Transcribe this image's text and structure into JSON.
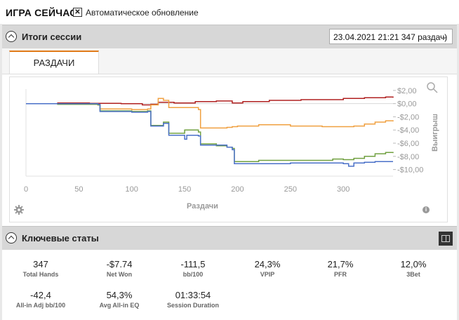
{
  "app": {
    "title": "ИГРА СЕЙЧАС",
    "auto_update_label": "Автоматическое обновление",
    "auto_update_checked": "✕"
  },
  "session": {
    "title": "Итоги сессии",
    "select_value": "23.04.2021 21:21 347 раздач)",
    "tab_label": "РАЗДАЧИ"
  },
  "chart_data": {
    "type": "line",
    "xlabel": "Раздачи",
    "ylabel": "Выигрыш",
    "xlim": [
      0,
      347
    ],
    "ylim": [
      -11,
      2.2
    ],
    "x_ticks": [
      0,
      50,
      100,
      150,
      200,
      250,
      300
    ],
    "y_ticks": [
      2,
      0,
      -2,
      -4,
      -6,
      -8,
      -10
    ],
    "y_tick_labels": [
      "$2,00",
      "$0,00",
      "-$2,00",
      "-$4,00",
      "-$6,00",
      "-$8,00",
      "-$10,00"
    ],
    "series": [
      {
        "color": "#b02020",
        "points": [
          [
            0,
            0
          ],
          [
            30,
            0.1
          ],
          [
            60,
            0.05
          ],
          [
            90,
            0
          ],
          [
            110,
            -0.2
          ],
          [
            118,
            -0.1
          ],
          [
            125,
            0.2
          ],
          [
            140,
            0.1
          ],
          [
            160,
            0.3
          ],
          [
            180,
            0.4
          ],
          [
            195,
            0.1
          ],
          [
            205,
            0.3
          ],
          [
            230,
            0.5
          ],
          [
            260,
            0.6
          ],
          [
            300,
            0.8
          ],
          [
            320,
            0.9
          ],
          [
            340,
            1.0
          ],
          [
            347,
            0.9
          ]
        ]
      },
      {
        "color": "#f0a040",
        "points": [
          [
            0,
            0
          ],
          [
            30,
            -0.1
          ],
          [
            68,
            -0.2
          ],
          [
            70,
            -0.8
          ],
          [
            100,
            -0.9
          ],
          [
            115,
            -0.8
          ],
          [
            118,
            -0.2
          ],
          [
            125,
            0.8
          ],
          [
            130,
            0.5
          ],
          [
            135,
            -0.6
          ],
          [
            150,
            -0.6
          ],
          [
            163,
            -0.9
          ],
          [
            165,
            -3.7
          ],
          [
            190,
            -3.6
          ],
          [
            195,
            -3.5
          ],
          [
            200,
            -3.4
          ],
          [
            220,
            -3.2
          ],
          [
            250,
            -3.4
          ],
          [
            280,
            -3.5
          ],
          [
            310,
            -3.4
          ],
          [
            320,
            -3.1
          ],
          [
            330,
            -2.8
          ],
          [
            340,
            -2.6
          ],
          [
            347,
            -2.7
          ]
        ]
      },
      {
        "color": "#70a040",
        "points": [
          [
            0,
            0
          ],
          [
            30,
            -0.1
          ],
          [
            68,
            -0.2
          ],
          [
            70,
            -1.1
          ],
          [
            100,
            -1.2
          ],
          [
            115,
            -1.1
          ],
          [
            118,
            -3.3
          ],
          [
            130,
            -2.8
          ],
          [
            135,
            -4.5
          ],
          [
            145,
            -4.5
          ],
          [
            150,
            -4.0
          ],
          [
            163,
            -4.3
          ],
          [
            165,
            -6.1
          ],
          [
            180,
            -6.4
          ],
          [
            190,
            -6.6
          ],
          [
            195,
            -6.8
          ],
          [
            197,
            -8.8
          ],
          [
            220,
            -8.6
          ],
          [
            250,
            -8.6
          ],
          [
            290,
            -8.4
          ],
          [
            300,
            -8.5
          ],
          [
            310,
            -8.3
          ],
          [
            320,
            -8.0
          ],
          [
            330,
            -7.6
          ],
          [
            340,
            -7.4
          ],
          [
            347,
            -7.5
          ]
        ]
      },
      {
        "color": "#4a70c8",
        "points": [
          [
            0,
            0
          ],
          [
            68,
            -0.1
          ],
          [
            70,
            -1.2
          ],
          [
            100,
            -1.3
          ],
          [
            115,
            -1.2
          ],
          [
            118,
            -3.4
          ],
          [
            130,
            -3.0
          ],
          [
            135,
            -4.8
          ],
          [
            145,
            -4.8
          ],
          [
            150,
            -5.4
          ],
          [
            152,
            -4.8
          ],
          [
            163,
            -4.9
          ],
          [
            165,
            -6.3
          ],
          [
            190,
            -6.6
          ],
          [
            195,
            -7.0
          ],
          [
            197,
            -9.1
          ],
          [
            250,
            -9.0
          ],
          [
            300,
            -9.1
          ],
          [
            305,
            -9.5
          ],
          [
            310,
            -9.0
          ],
          [
            320,
            -8.9
          ],
          [
            330,
            -8.8
          ],
          [
            347,
            -8.8
          ]
        ]
      }
    ]
  },
  "stats": {
    "title": "Ключевые статы",
    "items": [
      {
        "value": "347",
        "label": "Total Hands"
      },
      {
        "value": "-$7.74",
        "label": "Net Won"
      },
      {
        "value": "-111,5",
        "label": "bb/100"
      },
      {
        "value": "24,3%",
        "label": "VPIP"
      },
      {
        "value": "21,7%",
        "label": "PFR"
      },
      {
        "value": "12,0%",
        "label": "3Bet"
      },
      {
        "value": "-42,4",
        "label": "All-in Adj bb/100"
      },
      {
        "value": "54,3%",
        "label": "Avg All-in EQ"
      },
      {
        "value": "01:33:54",
        "label": "Session Duration"
      }
    ]
  },
  "icons": {
    "collapse": "chevron-up-circle-icon",
    "select": "chevron-down-icon",
    "zoom": "magnifier-icon",
    "settings": "gear-icon",
    "info": "info-icon",
    "layout": "layout-toggle-icon"
  }
}
